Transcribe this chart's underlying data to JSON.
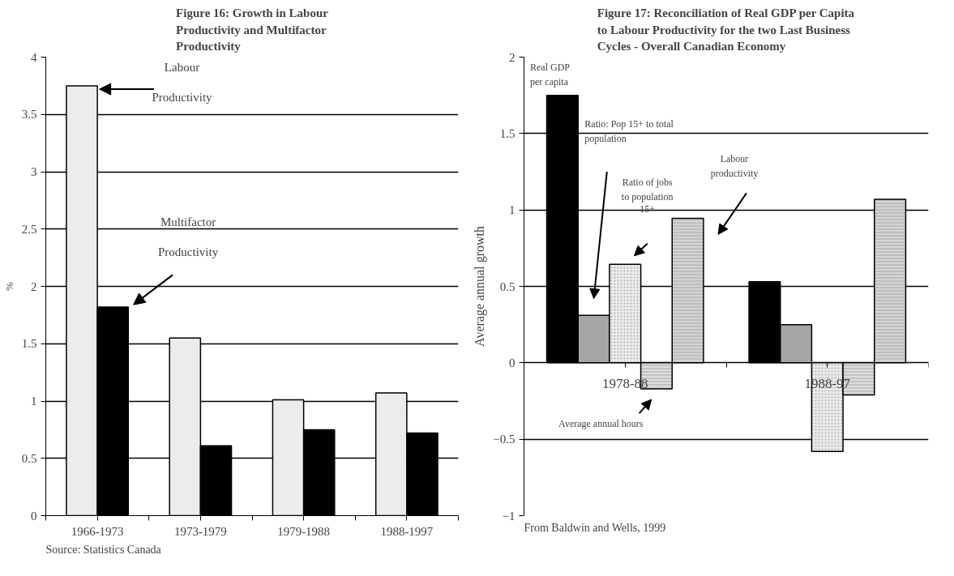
{
  "chart_data": [
    {
      "type": "bar",
      "title": "Figure 16: Growth in Labour Productivity and Multifactor Productivity",
      "ylabel": "%",
      "categories": [
        "1966-1973",
        "1973-1979",
        "1979-1988",
        "1988-1997"
      ],
      "series": [
        {
          "name": "Labour Productivity",
          "color": "#ececec",
          "values": [
            3.75,
            1.55,
            1.01,
            1.07
          ]
        },
        {
          "name": "Multifactor Productivity",
          "color": "#000000",
          "values": [
            1.82,
            0.61,
            0.75,
            0.72
          ]
        }
      ],
      "ylim": [
        0,
        4
      ],
      "yticks": [
        0,
        0.5,
        1,
        1.5,
        2,
        2.5,
        3,
        3.5,
        4
      ],
      "grid": "y",
      "annotations": [
        "Source: Statistics Canada"
      ]
    },
    {
      "type": "bar",
      "title": "Figure 17: Reconciliation of Real GDP per Capita to Labour Productivity for the two Last Business Cycles - Overall Canadian Economy",
      "ylabel": "Average annual growth",
      "categories": [
        "1978-88",
        "1988-97"
      ],
      "series": [
        {
          "name": "Real GDP per capita",
          "color": "#000000",
          "values": [
            1.75,
            0.53
          ]
        },
        {
          "color": "#a6a6a6",
          "values": [
            0.31,
            0.25
          ]
        },
        {
          "color": "#ebebeb",
          "values": [
            0.645,
            -0.58
          ]
        },
        {
          "color": "#dcdcdc",
          "values": [
            -0.17,
            -0.21
          ]
        },
        {
          "color": "#d4d4d4",
          "values": [
            0.945,
            1.07
          ]
        }
      ],
      "ylim": [
        -1,
        2
      ],
      "yticks": [
        -1,
        -0.5,
        0,
        0.5,
        1,
        1.5,
        2
      ],
      "grid": "y",
      "annotations": [
        "Ratio: Pop 15+  to total population",
        "Ratio of jobs to population 15+",
        "Average annual hours",
        "Labour productivity",
        "From Baldwin and Wells, 1999"
      ]
    }
  ]
}
